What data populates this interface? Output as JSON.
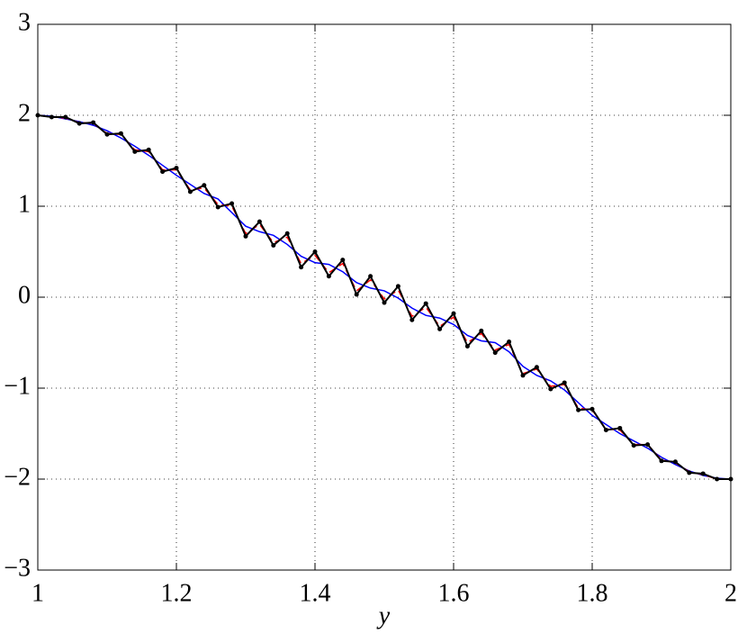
{
  "chart_data": {
    "type": "line",
    "xlabel": "y",
    "x": [
      1.0,
      1.02,
      1.04,
      1.06,
      1.08,
      1.1,
      1.12,
      1.14,
      1.16,
      1.18,
      1.2,
      1.22,
      1.24,
      1.26,
      1.28,
      1.3,
      1.32,
      1.34,
      1.36,
      1.38,
      1.4,
      1.42,
      1.44,
      1.46,
      1.48,
      1.5,
      1.52,
      1.54,
      1.56,
      1.58,
      1.6,
      1.62,
      1.64,
      1.66,
      1.68,
      1.7,
      1.72,
      1.74,
      1.76,
      1.78,
      1.8,
      1.82,
      1.84,
      1.86,
      1.88,
      1.9,
      1.92,
      1.94,
      1.96,
      1.98,
      2.0
    ],
    "series": [
      {
        "color": "#0000ff",
        "style": "solid",
        "values": [
          2.0,
          1.99,
          1.96,
          1.93,
          1.89,
          1.83,
          1.75,
          1.66,
          1.56,
          1.45,
          1.34,
          1.24,
          1.14,
          1.08,
          0.93,
          0.78,
          0.72,
          0.68,
          0.58,
          0.45,
          0.38,
          0.36,
          0.28,
          0.16,
          0.1,
          0.07,
          -0.01,
          -0.12,
          -0.2,
          -0.23,
          -0.3,
          -0.42,
          -0.48,
          -0.5,
          -0.6,
          -0.76,
          -0.86,
          -0.92,
          -1.02,
          -1.16,
          -1.3,
          -1.4,
          -1.5,
          -1.58,
          -1.66,
          -1.76,
          -1.84,
          -1.91,
          -1.96,
          -1.99,
          -2.0
        ]
      },
      {
        "color": "#ff0000",
        "style": "dashed",
        "values": [
          2.0,
          1.98,
          1.97,
          1.92,
          1.91,
          1.8,
          1.79,
          1.62,
          1.6,
          1.4,
          1.4,
          1.18,
          1.2,
          1.02,
          1.0,
          0.7,
          0.8,
          0.6,
          0.66,
          0.37,
          0.46,
          0.27,
          0.37,
          0.07,
          0.19,
          -0.02,
          0.08,
          -0.21,
          -0.11,
          -0.32,
          -0.22,
          -0.5,
          -0.4,
          -0.58,
          -0.52,
          -0.84,
          -0.79,
          -0.98,
          -0.96,
          -1.22,
          -1.24,
          -1.45,
          -1.46,
          -1.62,
          -1.62,
          -1.79,
          -1.82,
          -1.92,
          -1.95,
          -2.0,
          -2.0
        ]
      },
      {
        "color": "#000000",
        "style": "solid",
        "markers": true,
        "values": [
          2.0,
          1.98,
          1.98,
          1.91,
          1.92,
          1.79,
          1.8,
          1.6,
          1.62,
          1.38,
          1.42,
          1.16,
          1.23,
          0.99,
          1.03,
          0.67,
          0.83,
          0.57,
          0.7,
          0.33,
          0.5,
          0.23,
          0.41,
          0.03,
          0.23,
          -0.06,
          0.12,
          -0.25,
          -0.07,
          -0.35,
          -0.18,
          -0.54,
          -0.37,
          -0.61,
          -0.49,
          -0.86,
          -0.77,
          -1.01,
          -0.94,
          -1.24,
          -1.23,
          -1.46,
          -1.44,
          -1.63,
          -1.62,
          -1.8,
          -1.81,
          -1.93,
          -1.94,
          -2.0,
          -2.0
        ]
      }
    ],
    "xlim": [
      1,
      2
    ],
    "xticks": [
      1,
      1.2,
      1.4,
      1.6,
      1.8,
      2
    ],
    "ylim": [
      -3,
      3
    ],
    "yticks": [
      {
        "value": -3,
        "label": "−3"
      },
      {
        "value": -2,
        "label": "−2"
      },
      {
        "value": -1,
        "label": "−1"
      },
      0,
      1,
      2,
      3
    ],
    "grid": true
  }
}
